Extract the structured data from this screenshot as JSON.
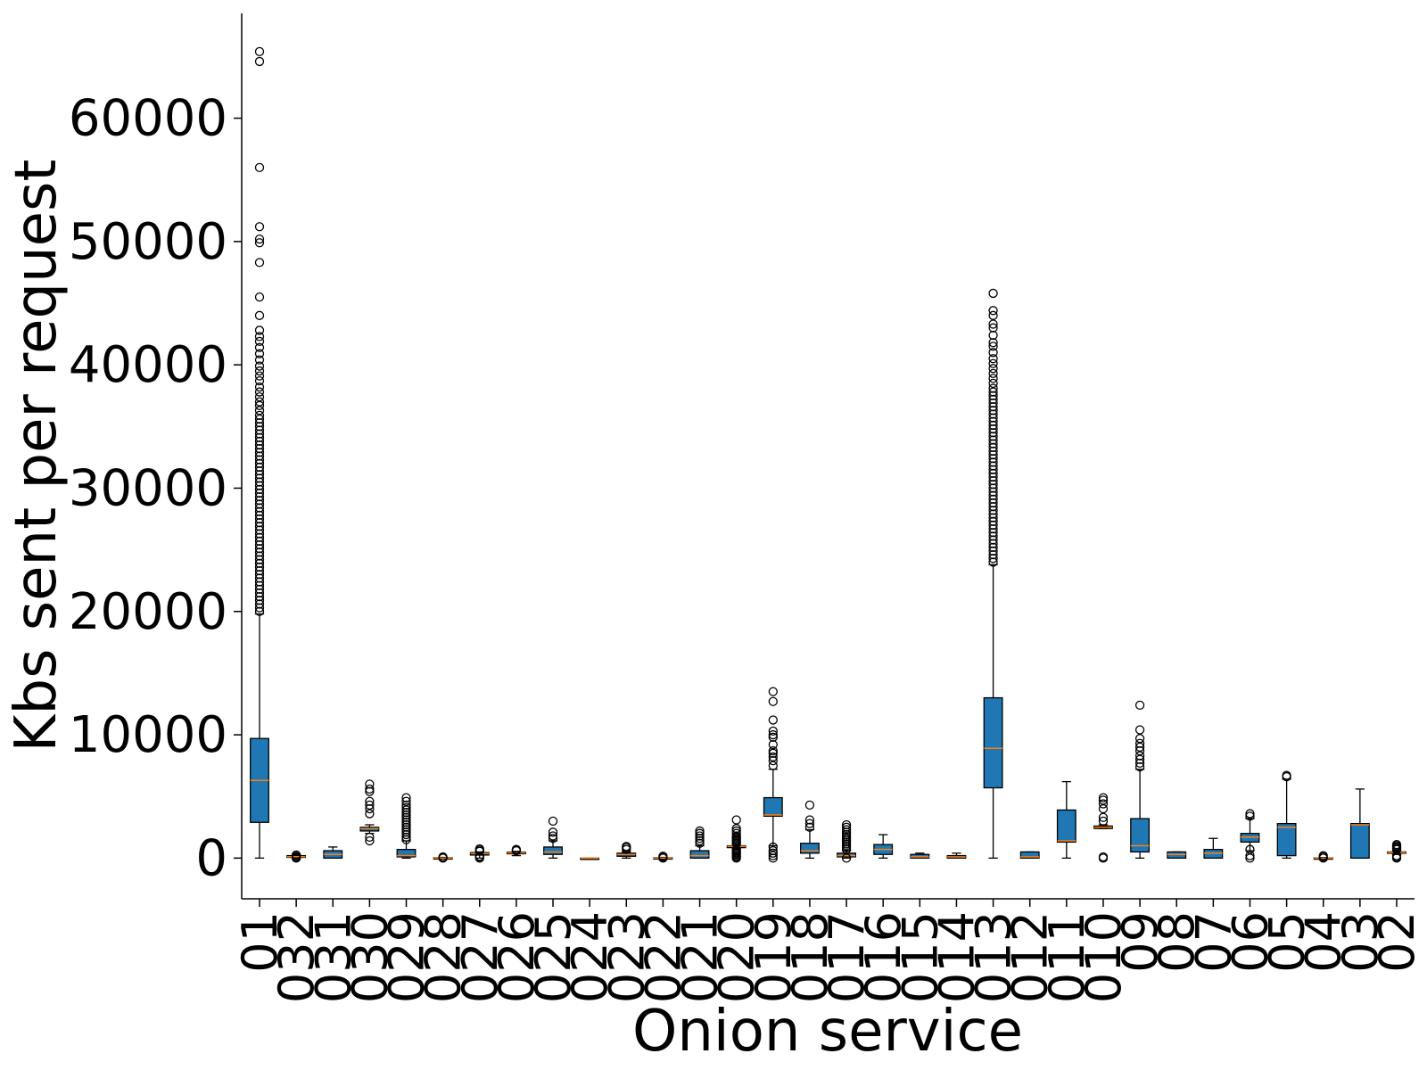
{
  "chart_data": {
    "type": "boxplot",
    "xlabel": "Onion service",
    "ylabel": "Kbs sent per request",
    "ylim": [
      -3300,
      68500
    ],
    "yticks": [
      0,
      10000,
      20000,
      30000,
      40000,
      50000,
      60000
    ],
    "ytick_labels": [
      "0",
      "10000",
      "20000",
      "30000",
      "40000",
      "50000",
      "60000"
    ],
    "colors": {
      "box": "#1f77b4",
      "median": "#ff7f0e",
      "line": "#000000"
    },
    "grid": false,
    "categories": [
      "01",
      "032",
      "031",
      "030",
      "029",
      "028",
      "027",
      "026",
      "025",
      "024",
      "023",
      "022",
      "021",
      "020",
      "019",
      "018",
      "017",
      "016",
      "015",
      "014",
      "013",
      "012",
      "011",
      "010",
      "09",
      "08",
      "07",
      "06",
      "05",
      "04",
      "03",
      "02"
    ],
    "boxes": [
      {
        "label": "01",
        "whislo": 0,
        "q1": 2900,
        "med": 6300,
        "q3": 9700,
        "whishi": 19800,
        "fliers": [
          20000,
          20300,
          20600,
          20900,
          21200,
          21500,
          21800,
          22100,
          22400,
          22700,
          23000,
          23300,
          23600,
          23900,
          24200,
          24500,
          24800,
          25100,
          25400,
          25700,
          26000,
          26300,
          26600,
          26900,
          27200,
          27500,
          27800,
          28100,
          28400,
          28700,
          29000,
          29300,
          29600,
          29900,
          30200,
          30500,
          30800,
          31100,
          31400,
          31700,
          32000,
          32300,
          32600,
          32900,
          33200,
          33500,
          33800,
          34100,
          34400,
          34700,
          35000,
          35300,
          35600,
          35900,
          36300,
          36700,
          37000,
          37400,
          37800,
          38200,
          38700,
          39100,
          39500,
          39900,
          40400,
          40900,
          41400,
          41900,
          42300,
          42800,
          44000,
          45500,
          48300,
          49900,
          50200,
          51200,
          56000,
          64600,
          65400
        ]
      },
      {
        "label": "032",
        "whislo": 0,
        "q1": 60,
        "med": 120,
        "q3": 200,
        "whishi": 300,
        "fliers": [
          0,
          60,
          150,
          250
        ]
      },
      {
        "label": "031",
        "whislo": 0,
        "q1": 0,
        "med": 300,
        "q3": 600,
        "whishi": 900,
        "fliers": []
      },
      {
        "label": "030",
        "whislo": 2000,
        "q1": 2200,
        "med": 2400,
        "q3": 2500,
        "whishi": 2700,
        "fliers": [
          1400,
          1700,
          3600,
          4000,
          4300,
          4600,
          5400,
          5600,
          6000
        ]
      },
      {
        "label": "029",
        "whislo": 0,
        "q1": 100,
        "med": 200,
        "q3": 700,
        "whishi": 1400,
        "fliers": [
          1500,
          1700,
          1900,
          2100,
          2300,
          2500,
          2700,
          2900,
          3100,
          3300,
          3500,
          3700,
          3900,
          4100,
          4300,
          4600,
          4900
        ]
      },
      {
        "label": "028",
        "whislo": 0,
        "q1": 0,
        "med": 0,
        "q3": 30,
        "whishi": 60,
        "fliers": [
          0,
          60,
          100
        ]
      },
      {
        "label": "027",
        "whislo": 0,
        "q1": 250,
        "med": 380,
        "q3": 450,
        "whishi": 500,
        "fliers": [
          0,
          100,
          150,
          550,
          650,
          750
        ]
      },
      {
        "label": "026",
        "whislo": 200,
        "q1": 350,
        "med": 420,
        "q3": 480,
        "whishi": 550,
        "fliers": [
          600,
          650,
          700
        ]
      },
      {
        "label": "025",
        "whislo": 0,
        "q1": 300,
        "med": 500,
        "q3": 900,
        "whishi": 1400,
        "fliers": [
          1600,
          1800,
          2100,
          3000
        ]
      },
      {
        "label": "024",
        "whislo": 0,
        "q1": 0,
        "med": 0,
        "q3": 0,
        "whishi": 0,
        "fliers": []
      },
      {
        "label": "023",
        "whislo": 0,
        "q1": 150,
        "med": 300,
        "q3": 400,
        "whishi": 500,
        "fliers": [
          700,
          850,
          950
        ]
      },
      {
        "label": "022",
        "whislo": 0,
        "q1": 0,
        "med": 0,
        "q3": 30,
        "whishi": 60,
        "fliers": [
          0,
          80,
          150
        ]
      },
      {
        "label": "021",
        "whislo": 0,
        "q1": 0,
        "med": 200,
        "q3": 600,
        "whishi": 1000,
        "fliers": [
          1200,
          1400,
          1600,
          1800,
          2000,
          2200
        ]
      },
      {
        "label": "020",
        "whislo": 800,
        "q1": 850,
        "med": 950,
        "q3": 1000,
        "whishi": 1100,
        "fliers": [
          0,
          100,
          200,
          300,
          400,
          500,
          600,
          700,
          1200,
          1300,
          1400,
          1500,
          1600,
          1700,
          1800,
          2000,
          2200,
          2400,
          3100
        ]
      },
      {
        "label": "019",
        "whislo": 1000,
        "q1": 3400,
        "med": 3500,
        "q3": 4900,
        "whishi": 7200,
        "fliers": [
          0,
          200,
          400,
          600,
          900,
          7500,
          7900,
          8200,
          8500,
          8700,
          9200,
          9800,
          10000,
          10300,
          11200,
          12700,
          13500
        ]
      },
      {
        "label": "018",
        "whislo": 0,
        "q1": 400,
        "med": 600,
        "q3": 1200,
        "whishi": 2300,
        "fliers": [
          2500,
          2800,
          3100,
          4300
        ]
      },
      {
        "label": "017",
        "whislo": 0,
        "q1": 100,
        "med": 200,
        "q3": 400,
        "whishi": 600,
        "fliers": [
          0,
          700,
          850,
          1000,
          1150,
          1300,
          1450,
          1600,
          1750,
          1900,
          2100,
          2300,
          2500,
          2700
        ]
      },
      {
        "label": "016",
        "whislo": 0,
        "q1": 300,
        "med": 700,
        "q3": 1100,
        "whishi": 1900,
        "fliers": []
      },
      {
        "label": "015",
        "whislo": 0,
        "q1": 0,
        "med": 100,
        "q3": 300,
        "whishi": 400,
        "fliers": []
      },
      {
        "label": "014",
        "whislo": 0,
        "q1": 0,
        "med": 100,
        "q3": 200,
        "whishi": 400,
        "fliers": []
      },
      {
        "label": "013",
        "whislo": 0,
        "q1": 5700,
        "med": 8900,
        "q3": 13000,
        "whishi": 23800,
        "fliers": [
          24000,
          24300,
          24600,
          24900,
          25200,
          25500,
          25800,
          26100,
          26400,
          26700,
          27000,
          27300,
          27600,
          27900,
          28200,
          28500,
          28800,
          29100,
          29400,
          29700,
          30000,
          30300,
          30600,
          30900,
          31200,
          31500,
          31800,
          32100,
          32400,
          32700,
          33000,
          33300,
          33600,
          33900,
          34200,
          34500,
          34800,
          35100,
          35400,
          35700,
          36000,
          36300,
          36600,
          36900,
          37200,
          37500,
          37800,
          38100,
          38500,
          38900,
          39300,
          39700,
          40100,
          40500,
          41000,
          41500,
          41800,
          42400,
          43000,
          43300,
          44000,
          44400,
          45800
        ]
      },
      {
        "label": "012",
        "whislo": 0,
        "q1": 0,
        "med": 100,
        "q3": 500,
        "whishi": 500,
        "fliers": []
      },
      {
        "label": "011",
        "whislo": 0,
        "q1": 1300,
        "med": 1400,
        "q3": 3900,
        "whishi": 6200,
        "fliers": []
      },
      {
        "label": "010",
        "whislo": 2400,
        "q1": 2400,
        "med": 2500,
        "q3": 2600,
        "whishi": 2700,
        "fliers": [
          0,
          100,
          3000,
          3300,
          4000,
          4400,
          4700,
          4900
        ]
      },
      {
        "label": "09",
        "whislo": 0,
        "q1": 500,
        "med": 1000,
        "q3": 3200,
        "whishi": 7200,
        "fliers": [
          7400,
          7700,
          8000,
          8300,
          8700,
          9000,
          9300,
          9700,
          10400,
          12400
        ]
      },
      {
        "label": "08",
        "whislo": 0,
        "q1": 0,
        "med": 300,
        "q3": 500,
        "whishi": 500,
        "fliers": []
      },
      {
        "label": "07",
        "whislo": 0,
        "q1": 0,
        "med": 400,
        "q3": 700,
        "whishi": 1600,
        "fliers": []
      },
      {
        "label": "06",
        "whislo": 600,
        "q1": 1300,
        "med": 1700,
        "q3": 2000,
        "whishi": 3200,
        "fliers": [
          0,
          200,
          700,
          3400,
          3600
        ]
      },
      {
        "label": "05",
        "whislo": 0,
        "q1": 200,
        "med": 2500,
        "q3": 2800,
        "whishi": 6400,
        "fliers": [
          6600,
          6700
        ]
      },
      {
        "label": "04",
        "whislo": 0,
        "q1": 0,
        "med": 0,
        "q3": 20,
        "whishi": 50,
        "fliers": [
          0,
          100,
          200
        ]
      },
      {
        "label": "03",
        "whislo": 0,
        "q1": 0,
        "med": 2700,
        "q3": 2800,
        "whishi": 5600,
        "fliers": []
      },
      {
        "label": "02",
        "whislo": 300,
        "q1": 400,
        "med": 450,
        "q3": 500,
        "whishi": 600,
        "fliers": [
          0,
          100,
          200,
          700,
          800,
          900,
          1000,
          1100
        ]
      }
    ]
  }
}
